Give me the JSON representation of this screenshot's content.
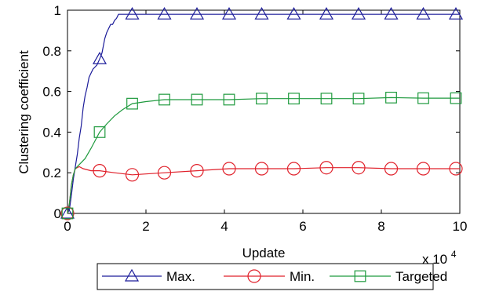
{
  "chart_data": {
    "type": "line",
    "xlabel": "Update",
    "ylabel": "Clustering coefficient",
    "x_multiplier_label": "x 10",
    "x_multiplier_exponent": "4",
    "xlim": [
      0,
      10
    ],
    "ylim": [
      0,
      1
    ],
    "xticks": [
      0,
      2,
      4,
      6,
      8,
      10
    ],
    "yticks": [
      0,
      0.2,
      0.4,
      0.6,
      0.8,
      1
    ],
    "ytick_labels": [
      "0",
      "0.2",
      "0.4",
      "0.6",
      "0.8",
      "1"
    ],
    "grid": false,
    "legend_placement": "bottom",
    "series": [
      {
        "name": "Max.",
        "color": "#1c1c9a",
        "marker": "triangle",
        "values": [
          [
            0,
            0
          ],
          [
            0.05,
            0.02
          ],
          [
            0.1,
            0.09
          ],
          [
            0.15,
            0.17
          ],
          [
            0.2,
            0.23
          ],
          [
            0.25,
            0.29
          ],
          [
            0.3,
            0.37
          ],
          [
            0.35,
            0.43
          ],
          [
            0.4,
            0.52
          ],
          [
            0.45,
            0.58
          ],
          [
            0.5,
            0.62
          ],
          [
            0.55,
            0.67
          ],
          [
            0.6,
            0.69
          ],
          [
            0.65,
            0.71
          ],
          [
            0.7,
            0.72
          ],
          [
            0.75,
            0.73
          ],
          [
            0.82,
            0.76
          ],
          [
            0.88,
            0.79
          ],
          [
            0.95,
            0.86
          ],
          [
            1.0,
            0.89
          ],
          [
            1.05,
            0.91
          ],
          [
            1.1,
            0.93
          ],
          [
            1.15,
            0.93
          ],
          [
            1.2,
            0.95
          ],
          [
            1.25,
            0.96
          ],
          [
            1.3,
            0.98
          ],
          [
            2,
            0.98
          ],
          [
            4,
            0.98
          ],
          [
            6,
            0.98
          ],
          [
            8,
            0.98
          ],
          [
            10,
            0.98
          ]
        ],
        "markers_at": [
          [
            0,
            0
          ],
          [
            0.82,
            0.76
          ],
          [
            1.65,
            0.98
          ],
          [
            2.47,
            0.98
          ],
          [
            3.3,
            0.98
          ],
          [
            4.12,
            0.98
          ],
          [
            4.95,
            0.98
          ],
          [
            5.77,
            0.98
          ],
          [
            6.6,
            0.98
          ],
          [
            7.42,
            0.98
          ],
          [
            8.25,
            0.98
          ],
          [
            9.07,
            0.98
          ],
          [
            9.9,
            0.98
          ]
        ]
      },
      {
        "name": "Min.",
        "color": "#e0202a",
        "marker": "circle",
        "values": [
          [
            0,
            0
          ],
          [
            0.05,
            0.05
          ],
          [
            0.1,
            0.14
          ],
          [
            0.15,
            0.19
          ],
          [
            0.2,
            0.22
          ],
          [
            0.3,
            0.23
          ],
          [
            0.4,
            0.22
          ],
          [
            0.6,
            0.21
          ],
          [
            0.82,
            0.21
          ],
          [
            1.2,
            0.2
          ],
          [
            1.65,
            0.19
          ],
          [
            2.47,
            0.2
          ],
          [
            3.3,
            0.21
          ],
          [
            4.12,
            0.22
          ],
          [
            4.95,
            0.22
          ],
          [
            5.77,
            0.22
          ],
          [
            6.6,
            0.225
          ],
          [
            7.42,
            0.225
          ],
          [
            8.25,
            0.22
          ],
          [
            9.07,
            0.22
          ],
          [
            9.9,
            0.22
          ],
          [
            10,
            0.22
          ]
        ],
        "markers_at": [
          [
            0,
            0
          ],
          [
            0.82,
            0.21
          ],
          [
            1.65,
            0.19
          ],
          [
            2.47,
            0.2
          ],
          [
            3.3,
            0.21
          ],
          [
            4.12,
            0.22
          ],
          [
            4.95,
            0.22
          ],
          [
            5.77,
            0.22
          ],
          [
            6.6,
            0.225
          ],
          [
            7.42,
            0.225
          ],
          [
            8.25,
            0.22
          ],
          [
            9.07,
            0.22
          ],
          [
            9.9,
            0.22
          ]
        ]
      },
      {
        "name": "Targeted",
        "color": "#1f9a3e",
        "marker": "square",
        "values": [
          [
            0,
            0
          ],
          [
            0.05,
            0.05
          ],
          [
            0.1,
            0.14
          ],
          [
            0.15,
            0.19
          ],
          [
            0.2,
            0.22
          ],
          [
            0.3,
            0.24
          ],
          [
            0.45,
            0.27
          ],
          [
            0.6,
            0.32
          ],
          [
            0.82,
            0.4
          ],
          [
            1.0,
            0.44
          ],
          [
            1.2,
            0.48
          ],
          [
            1.4,
            0.51
          ],
          [
            1.65,
            0.54
          ],
          [
            2.0,
            0.55
          ],
          [
            2.47,
            0.56
          ],
          [
            3.3,
            0.56
          ],
          [
            4.12,
            0.56
          ],
          [
            4.95,
            0.565
          ],
          [
            5.77,
            0.565
          ],
          [
            6.6,
            0.565
          ],
          [
            7.42,
            0.565
          ],
          [
            8.25,
            0.57
          ],
          [
            9.07,
            0.567
          ],
          [
            9.9,
            0.567
          ],
          [
            10,
            0.567
          ]
        ],
        "markers_at": [
          [
            0,
            0
          ],
          [
            0.82,
            0.4
          ],
          [
            1.65,
            0.54
          ],
          [
            2.47,
            0.56
          ],
          [
            3.3,
            0.56
          ],
          [
            4.12,
            0.56
          ],
          [
            4.95,
            0.565
          ],
          [
            5.77,
            0.565
          ],
          [
            6.6,
            0.565
          ],
          [
            7.42,
            0.565
          ],
          [
            8.25,
            0.57
          ],
          [
            9.07,
            0.567
          ],
          [
            9.9,
            0.567
          ]
        ]
      }
    ]
  }
}
